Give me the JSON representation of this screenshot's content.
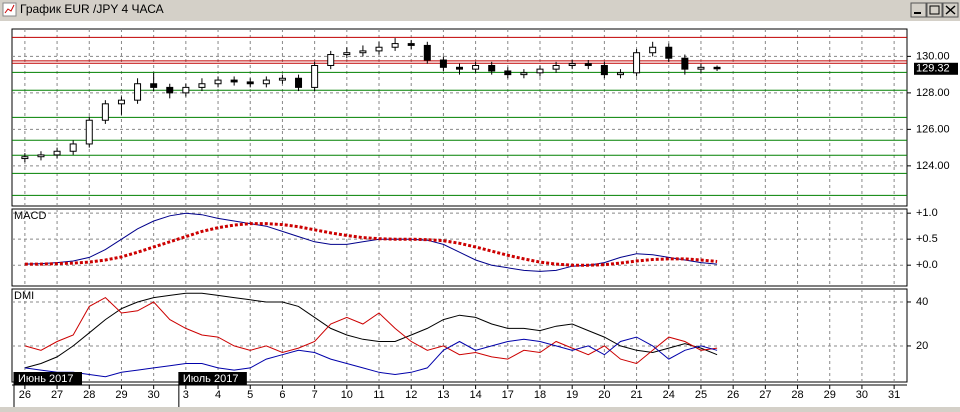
{
  "window_title": "График EUR /JPY  4 ЧАСА",
  "chart_data": [
    {
      "type": "candlestick",
      "name": null,
      "x": [
        0,
        0.5,
        1,
        1.5,
        2,
        2.5,
        3,
        3.5,
        4,
        4.5,
        5,
        5.5,
        6,
        6.5,
        7,
        7.5,
        8,
        8.5,
        9,
        9.5,
        10,
        10.5,
        11,
        11.5,
        12,
        12.5,
        13,
        13.5,
        14,
        14.5,
        15,
        15.5,
        16,
        16.5,
        17,
        17.5,
        18,
        18.5,
        19,
        19.5,
        20,
        20.5,
        21,
        21.5
      ],
      "xlim": [
        -0.4,
        27.4
      ],
      "xticks": [
        {
          "value": 0,
          "label": "26"
        },
        {
          "value": 1,
          "label": "27"
        },
        {
          "value": 2,
          "label": "28"
        },
        {
          "value": 3,
          "label": "29"
        },
        {
          "value": 4,
          "label": "30"
        },
        {
          "value": 5,
          "label": "3"
        },
        {
          "value": 6,
          "label": "4"
        },
        {
          "value": 7,
          "label": "5"
        },
        {
          "value": 8,
          "label": "6"
        },
        {
          "value": 9,
          "label": "7"
        },
        {
          "value": 10,
          "label": "10"
        },
        {
          "value": 11,
          "label": "11"
        },
        {
          "value": 12,
          "label": "12"
        },
        {
          "value": 13,
          "label": "13"
        },
        {
          "value": 14,
          "label": "14"
        },
        {
          "value": 15,
          "label": "17"
        },
        {
          "value": 16,
          "label": "18"
        },
        {
          "value": 17,
          "label": "19"
        },
        {
          "value": 18,
          "label": "20"
        },
        {
          "value": 19,
          "label": "21"
        },
        {
          "value": 20,
          "label": "24"
        },
        {
          "value": 21,
          "label": "25"
        },
        {
          "value": 22,
          "label": "26"
        },
        {
          "value": 23,
          "label": "27"
        },
        {
          "value": 24,
          "label": "28"
        },
        {
          "value": 25,
          "label": "29"
        },
        {
          "value": 26,
          "label": "30"
        },
        {
          "value": 27,
          "label": "31"
        }
      ],
      "month_labels": [
        {
          "value": 0,
          "label": "Июнь 2017"
        },
        {
          "value": 5,
          "label": "Июль 2017"
        }
      ],
      "ohlc": [
        [
          124.4,
          124.7,
          124.2,
          124.5
        ],
        [
          124.5,
          124.8,
          124.3,
          124.6
        ],
        [
          124.6,
          125.0,
          124.4,
          124.8
        ],
        [
          124.8,
          125.4,
          124.6,
          125.2
        ],
        [
          125.2,
          126.7,
          125.0,
          126.5
        ],
        [
          126.5,
          127.6,
          126.3,
          127.4
        ],
        [
          127.4,
          127.8,
          126.8,
          127.6
        ],
        [
          127.6,
          128.8,
          127.4,
          128.5
        ],
        [
          128.5,
          129.1,
          128.1,
          128.3
        ],
        [
          128.3,
          128.5,
          127.7,
          128.0
        ],
        [
          128.0,
          128.5,
          127.8,
          128.3
        ],
        [
          128.3,
          128.8,
          128.1,
          128.5
        ],
        [
          128.5,
          128.9,
          128.3,
          128.7
        ],
        [
          128.7,
          128.9,
          128.4,
          128.6
        ],
        [
          128.6,
          128.8,
          128.3,
          128.5
        ],
        [
          128.5,
          128.9,
          128.3,
          128.7
        ],
        [
          128.7,
          129.0,
          128.5,
          128.8
        ],
        [
          128.8,
          129.0,
          128.1,
          128.3
        ],
        [
          128.3,
          129.7,
          128.1,
          129.5
        ],
        [
          129.5,
          130.3,
          129.3,
          130.1
        ],
        [
          130.1,
          130.5,
          129.9,
          130.2
        ],
        [
          130.2,
          130.6,
          130.0,
          130.3
        ],
        [
          130.3,
          130.8,
          130.1,
          130.5
        ],
        [
          130.5,
          131.0,
          130.3,
          130.7
        ],
        [
          130.7,
          130.9,
          130.4,
          130.6
        ],
        [
          130.6,
          130.8,
          129.6,
          129.8
        ],
        [
          129.8,
          130.0,
          129.2,
          129.4
        ],
        [
          129.4,
          129.6,
          129.0,
          129.3
        ],
        [
          129.3,
          129.7,
          129.1,
          129.5
        ],
        [
          129.5,
          129.7,
          129.0,
          129.2
        ],
        [
          129.2,
          129.4,
          128.8,
          129.0
        ],
        [
          129.0,
          129.3,
          128.8,
          129.1
        ],
        [
          129.1,
          129.5,
          128.9,
          129.3
        ],
        [
          129.3,
          129.7,
          129.1,
          129.5
        ],
        [
          129.5,
          129.8,
          129.3,
          129.6
        ],
        [
          129.6,
          129.8,
          129.3,
          129.5
        ],
        [
          129.5,
          129.7,
          128.8,
          129.0
        ],
        [
          129.0,
          129.3,
          128.8,
          129.1
        ],
        [
          129.1,
          130.4,
          128.9,
          130.2
        ],
        [
          130.2,
          130.8,
          130.0,
          130.5
        ],
        [
          130.5,
          130.7,
          129.7,
          129.9
        ],
        [
          129.9,
          130.1,
          129.0,
          129.3
        ],
        [
          129.3,
          129.6,
          129.1,
          129.4
        ],
        [
          129.4,
          129.5,
          129.2,
          129.32
        ]
      ],
      "ylim": [
        121.8,
        131.5
      ],
      "yticks": [
        {
          "value": 130,
          "label": "130.00"
        },
        {
          "value": 128,
          "label": "128.00"
        },
        {
          "value": 126,
          "label": "126.00"
        },
        {
          "value": 124,
          "label": "124.00"
        }
      ],
      "last_price": {
        "value": 129.32,
        "label": "129.32"
      },
      "levels": [
        {
          "value": 131.04,
          "color": "#c00000"
        },
        {
          "value": 129.75,
          "color": "#c00000"
        },
        {
          "value": 129.62,
          "color": "#c00000"
        },
        {
          "value": 129.12,
          "color": "#008000"
        },
        {
          "value": 128.14,
          "color": "#008000"
        },
        {
          "value": 126.66,
          "color": "#008000"
        },
        {
          "value": 125.4,
          "color": "#008000"
        },
        {
          "value": 124.58,
          "color": "#008000"
        },
        {
          "value": 123.59,
          "color": "#008000"
        },
        {
          "value": 122.38,
          "color": "#008000"
        }
      ]
    },
    {
      "type": "line",
      "name": "MACD",
      "series": [
        {
          "color": "#00008b",
          "style": "solid",
          "values": [
            0.02,
            0.03,
            0.05,
            0.08,
            0.15,
            0.3,
            0.5,
            0.7,
            0.85,
            0.95,
            1.0,
            0.97,
            0.9,
            0.85,
            0.8,
            0.75,
            0.65,
            0.55,
            0.45,
            0.4,
            0.4,
            0.45,
            0.5,
            0.5,
            0.5,
            0.48,
            0.4,
            0.25,
            0.1,
            0.0,
            -0.05,
            -0.1,
            -0.12,
            -0.1,
            -0.02,
            0.0,
            0.05,
            0.15,
            0.22,
            0.2,
            0.15,
            0.1,
            0.05,
            0.02
          ]
        },
        {
          "color": "#cc0000",
          "style": "dotted",
          "values": [
            0.02,
            0.02,
            0.03,
            0.04,
            0.06,
            0.1,
            0.16,
            0.25,
            0.35,
            0.45,
            0.55,
            0.65,
            0.72,
            0.77,
            0.8,
            0.8,
            0.78,
            0.74,
            0.68,
            0.62,
            0.57,
            0.53,
            0.51,
            0.5,
            0.5,
            0.49,
            0.47,
            0.42,
            0.35,
            0.27,
            0.19,
            0.12,
            0.06,
            0.02,
            0.0,
            0.0,
            0.01,
            0.04,
            0.08,
            0.11,
            0.12,
            0.12,
            0.1,
            0.07
          ]
        }
      ],
      "ylim": [
        -0.4,
        1.08
      ],
      "yticks": [
        {
          "value": 1,
          "label": "+1.0"
        },
        {
          "value": 0.5,
          "label": "+0.5"
        },
        {
          "value": 0,
          "label": "+0.0"
        }
      ]
    },
    {
      "type": "line",
      "name": "DMI",
      "series": [
        {
          "color": "#000000",
          "style": "solid",
          "values": [
            10,
            12,
            15,
            20,
            26,
            32,
            37,
            40,
            42,
            43,
            44,
            44,
            43,
            42,
            41,
            40,
            40,
            38,
            33,
            28,
            25,
            23,
            22,
            22,
            25,
            28,
            32,
            34,
            33,
            30,
            28,
            28,
            27,
            29,
            30,
            27,
            24,
            20,
            18,
            17,
            19,
            21,
            19,
            16
          ]
        },
        {
          "color": "#cc0000",
          "style": "solid",
          "values": [
            20,
            18,
            22,
            25,
            38,
            42,
            35,
            36,
            40,
            32,
            28,
            25,
            24,
            20,
            18,
            20,
            17,
            19,
            22,
            30,
            33,
            30,
            35,
            28,
            22,
            18,
            20,
            16,
            17,
            15,
            14,
            18,
            17,
            22,
            19,
            16,
            20,
            14,
            12,
            18,
            24,
            22,
            18,
            19
          ]
        },
        {
          "color": "#0000aa",
          "style": "solid",
          "values": [
            10,
            9,
            8,
            8,
            7,
            6,
            8,
            9,
            10,
            11,
            12,
            12,
            10,
            9,
            10,
            14,
            16,
            18,
            17,
            14,
            12,
            10,
            8,
            7,
            8,
            10,
            18,
            22,
            18,
            20,
            22,
            23,
            22,
            20,
            18,
            20,
            16,
            22,
            24,
            20,
            14,
            18,
            20,
            18
          ]
        }
      ],
      "ylim": [
        3.6,
        45.9
      ],
      "yticks": [
        40,
        20
      ]
    }
  ]
}
